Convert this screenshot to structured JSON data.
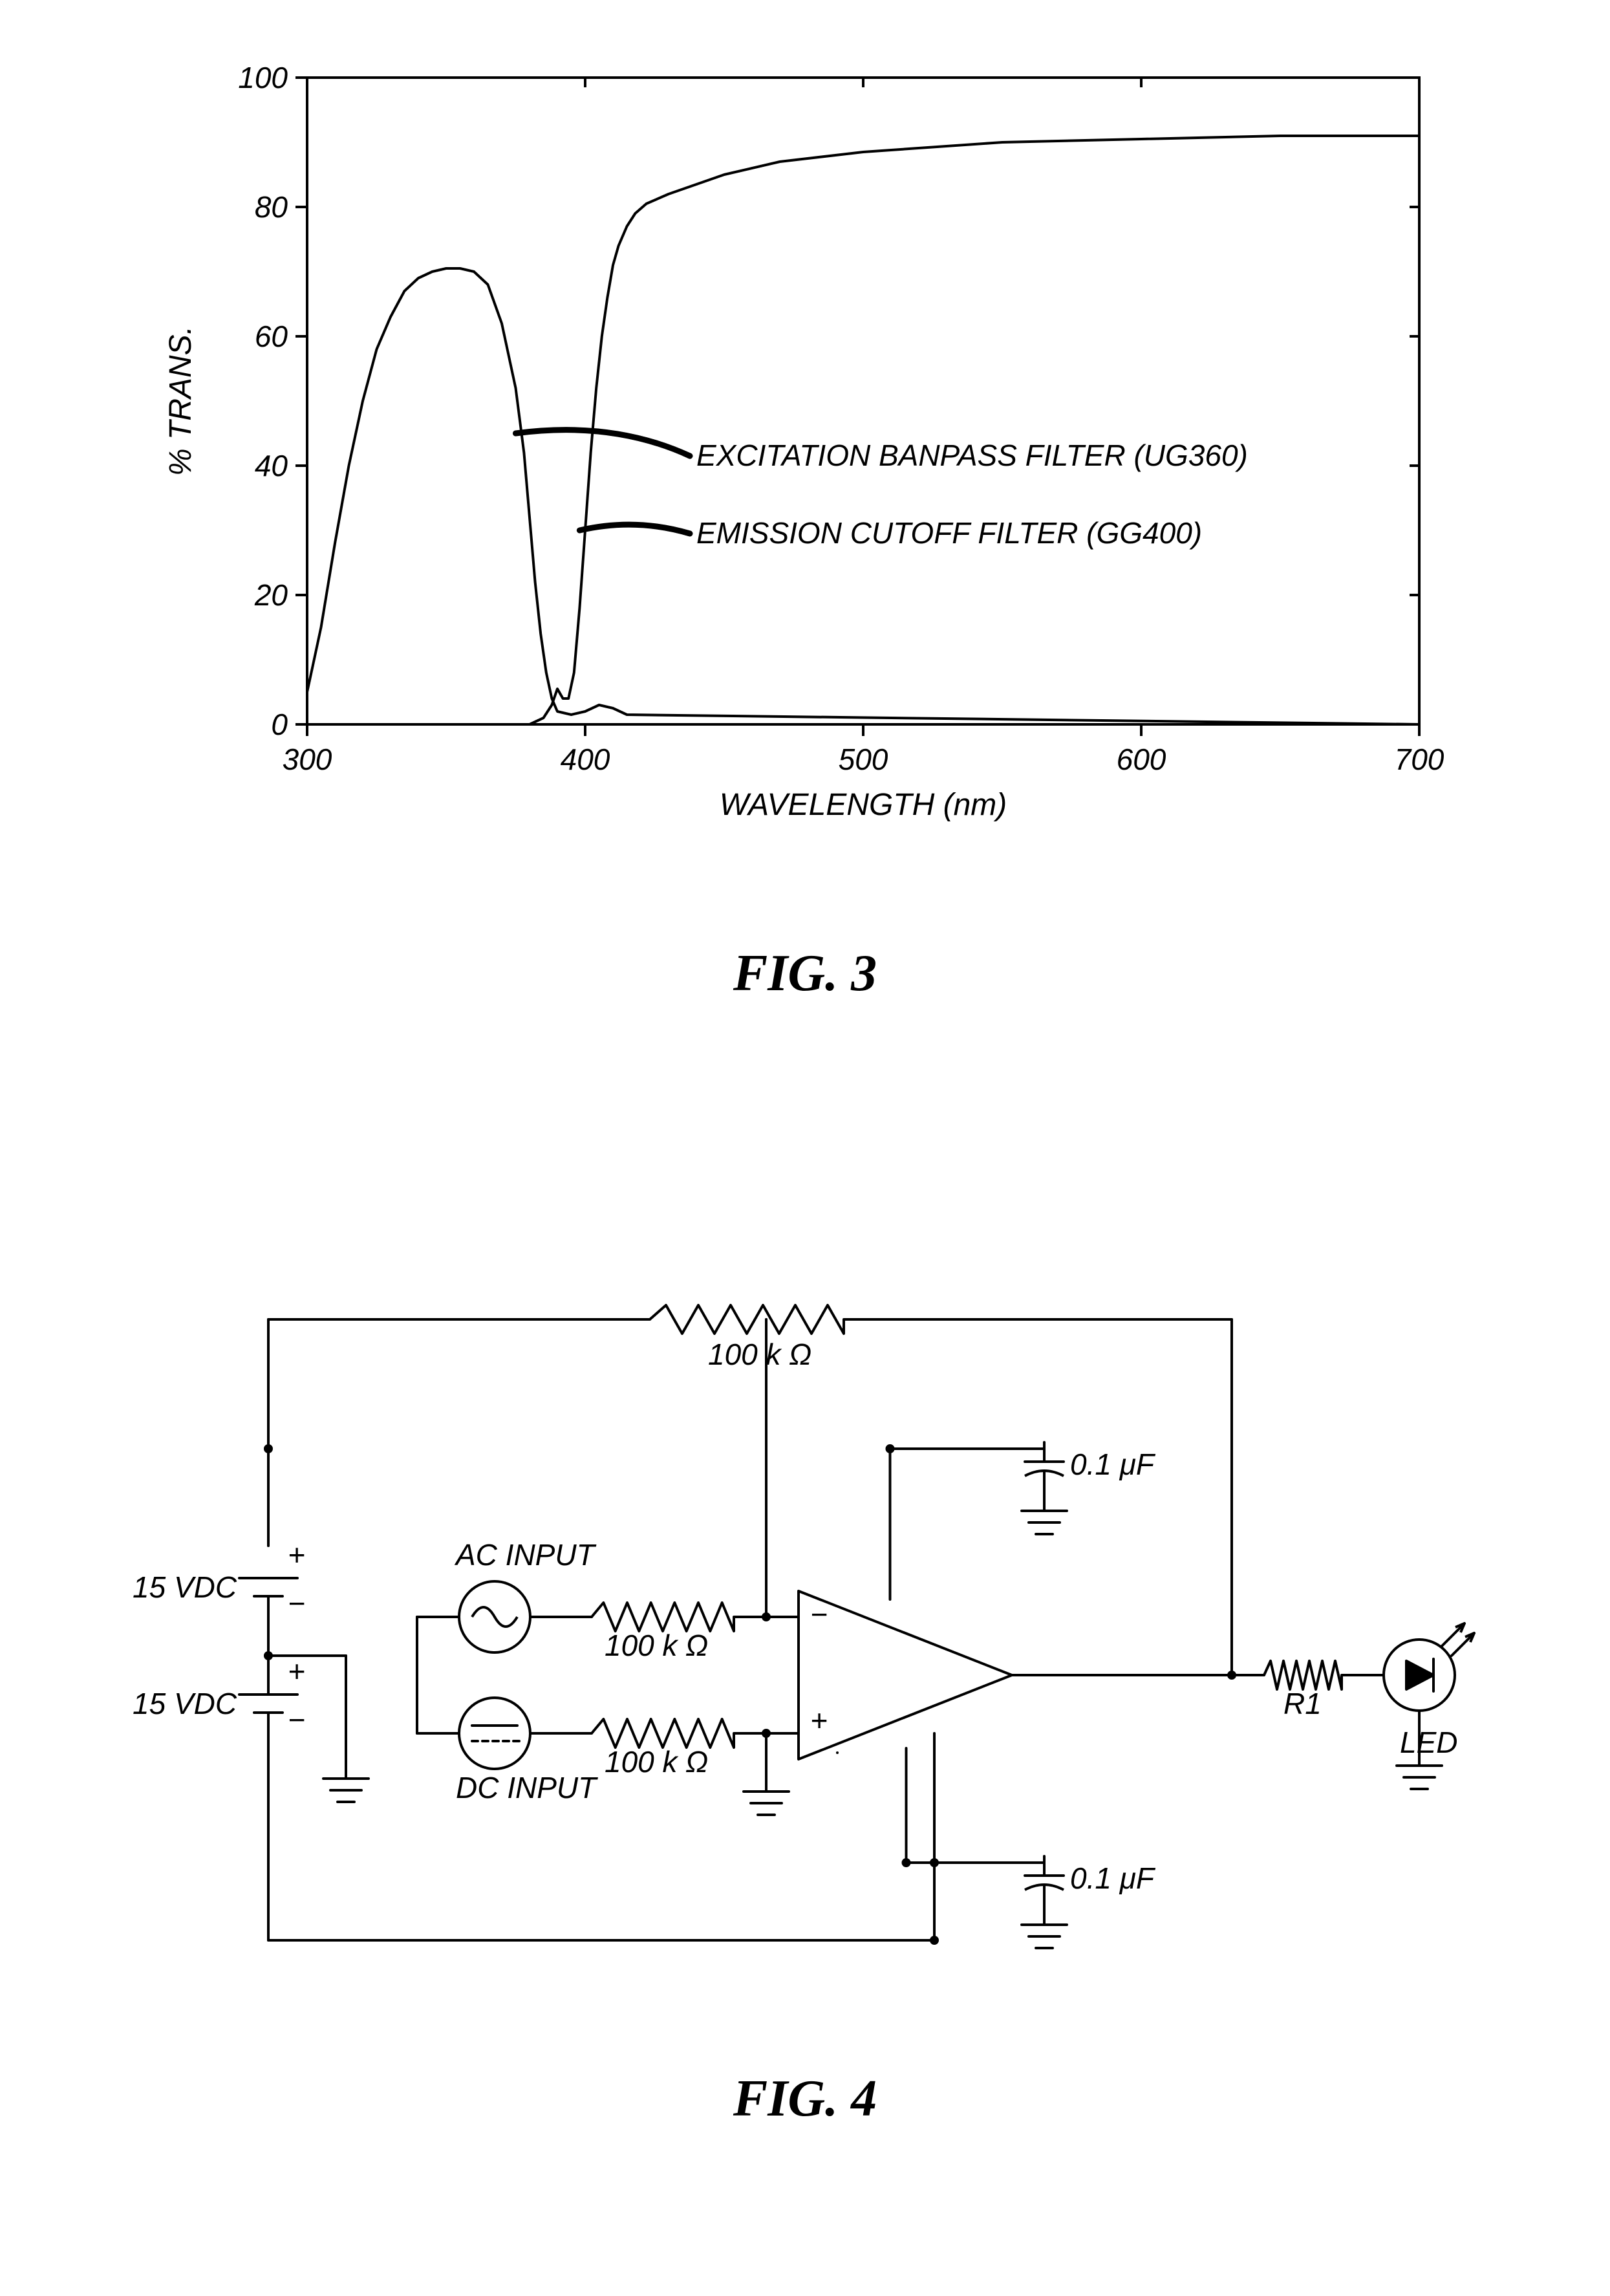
{
  "fig3": {
    "caption": "FIG. 3",
    "type": "line",
    "xlabel": "WAVELENGTH (nm)",
    "ylabel": "% TRANS.",
    "xlim": [
      300,
      700
    ],
    "ylim": [
      0,
      100
    ],
    "xticks": [
      300,
      400,
      500,
      600,
      700
    ],
    "yticks": [
      0,
      20,
      40,
      60,
      80,
      100
    ],
    "series": [
      {
        "name": "excitation",
        "label": "EXCITATION BANPASS FILTER (UG360)",
        "label_pos": {
          "x": 440,
          "y": 40
        },
        "leader_from": {
          "x": 375,
          "y": 45
        },
        "leader_curve": {
          "cx": 410,
          "cy": 47
        },
        "points": [
          [
            300,
            5
          ],
          [
            305,
            15
          ],
          [
            310,
            28
          ],
          [
            315,
            40
          ],
          [
            320,
            50
          ],
          [
            325,
            58
          ],
          [
            330,
            63
          ],
          [
            335,
            67
          ],
          [
            340,
            69
          ],
          [
            345,
            70
          ],
          [
            350,
            70.5
          ],
          [
            355,
            70.5
          ],
          [
            360,
            70
          ],
          [
            365,
            68
          ],
          [
            370,
            62
          ],
          [
            375,
            52
          ],
          [
            378,
            42
          ],
          [
            380,
            32
          ],
          [
            382,
            22
          ],
          [
            384,
            14
          ],
          [
            386,
            8
          ],
          [
            388,
            4
          ],
          [
            390,
            2
          ],
          [
            395,
            1.5
          ],
          [
            400,
            2
          ],
          [
            405,
            3
          ],
          [
            410,
            2.5
          ],
          [
            415,
            1.5
          ],
          [
            700,
            0
          ]
        ]
      },
      {
        "name": "emission",
        "label": "EMISSION CUTOFF FILTER (GG400)",
        "label_pos": {
          "x": 440,
          "y": 28
        },
        "leader_from": {
          "x": 398,
          "y": 30
        },
        "leader_curve": {
          "cx": 418,
          "cy": 32
        },
        "points": [
          [
            380,
            0
          ],
          [
            385,
            1
          ],
          [
            388,
            3
          ],
          [
            390,
            5.5
          ],
          [
            392,
            4
          ],
          [
            394,
            4
          ],
          [
            396,
            8
          ],
          [
            398,
            18
          ],
          [
            400,
            30
          ],
          [
            402,
            42
          ],
          [
            404,
            52
          ],
          [
            406,
            60
          ],
          [
            408,
            66
          ],
          [
            410,
            71
          ],
          [
            412,
            74
          ],
          [
            415,
            77
          ],
          [
            418,
            79
          ],
          [
            422,
            80.5
          ],
          [
            430,
            82
          ],
          [
            440,
            83.5
          ],
          [
            450,
            85
          ],
          [
            470,
            87
          ],
          [
            500,
            88.5
          ],
          [
            550,
            90
          ],
          [
            600,
            90.5
          ],
          [
            650,
            91
          ],
          [
            700,
            91
          ]
        ]
      }
    ],
    "line_color": "#000000",
    "line_width": 4,
    "axis_color": "#000000",
    "axis_width": 4,
    "background": "#ffffff",
    "font_size_ticks": 46,
    "font_size_labels": 48,
    "font_size_annotations": 46
  },
  "fig4": {
    "caption": "FIG. 4",
    "type": "circuit",
    "labels": {
      "v1": "15 VDC",
      "v2": "15 VDC",
      "ac": "AC INPUT",
      "dc": "DC INPUT",
      "r_ac": "100 kΩ",
      "r_dc": "100 kΩ",
      "r_fb": "100 kΩ",
      "c1": "0.1 μF",
      "c2": "0.1 μF",
      "r_out": "R1",
      "led": "LED"
    },
    "line_color": "#000000",
    "line_width": 4,
    "font_size": 46
  }
}
